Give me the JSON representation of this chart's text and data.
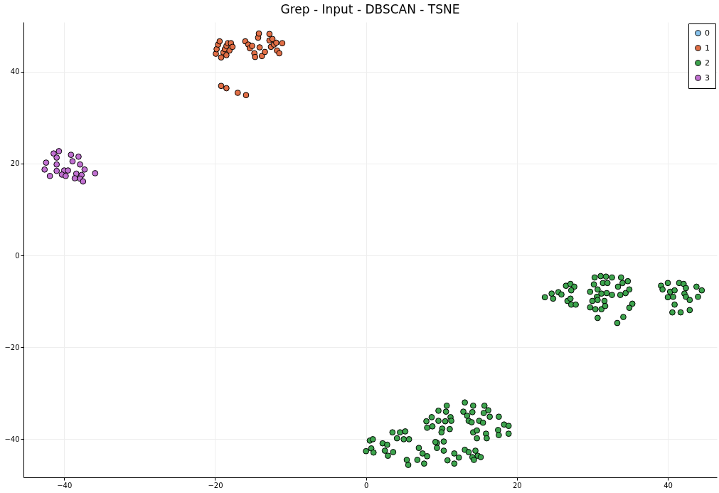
{
  "chart_data": {
    "type": "scatter",
    "title": "Grep - Input - DBSCAN - TSNE",
    "xlim": [
      -45.4,
      46.5
    ],
    "ylim": [
      -48.3,
      50.8
    ],
    "xticks": [
      -40,
      -20,
      0,
      20,
      40
    ],
    "yticks": [
      -40,
      -20,
      0,
      20,
      40
    ],
    "grid": true,
    "legend": "top right",
    "marker": "circle",
    "series": [
      {
        "name": "0",
        "color": "#88c4ee"
      },
      {
        "name": "1",
        "color": "#e26f46",
        "x": [
          -19.9,
          -19.8,
          -19.6,
          -19.4,
          -19.2,
          -18.9,
          -18.7,
          -18.5,
          -18.5,
          -18.3,
          -18.1,
          -17.9,
          -17.7,
          -16.0,
          -15.6,
          -15.4,
          -15.1,
          -14.8,
          -14.7,
          -14.3,
          -14.2,
          -14.1,
          -13.8,
          -13.4,
          -12.8,
          -12.8,
          -12.6,
          -12.4,
          -12.2,
          -11.9,
          -11.8,
          -11.5,
          -11.1,
          -19.2,
          -18.5,
          -17.0,
          -15.9
        ],
        "values": [
          43.9,
          44.9,
          45.9,
          46.6,
          43.1,
          44.2,
          44.9,
          45.6,
          43.6,
          46.2,
          44.6,
          46.2,
          45.4,
          46.6,
          45.9,
          45.1,
          45.6,
          44.0,
          43.2,
          47.4,
          48.3,
          45.3,
          43.4,
          44.3,
          48.2,
          46.8,
          45.4,
          47.1,
          45.9,
          46.3,
          44.6,
          44.0,
          46.2,
          36.9,
          36.4,
          35.4,
          34.9
        ]
      },
      {
        "name": "2",
        "color": "#3da44d",
        "x": [
          23.7,
          24.6,
          24.8,
          25.5,
          25.9,
          26.5,
          27.1,
          27.6,
          27.2,
          26.7,
          27.2,
          27.8,
          27.1,
          29.7,
          30.3,
          31.1,
          31.8,
          32.6,
          30.2,
          30.7,
          31.4,
          32.0,
          30.6,
          31.2,
          31.9,
          30.0,
          30.7,
          31.6,
          29.7,
          30.4,
          31.2,
          31.7,
          32.6,
          33.8,
          33.4,
          34.0,
          34.7,
          33.7,
          34.4,
          34.9,
          35.3,
          34.9,
          34.1,
          33.3,
          30.7,
          39.1,
          39.3,
          40.0,
          40.3,
          40.9,
          41.5,
          42.1,
          42.4,
          42.2,
          40.0,
          40.7,
          42.4,
          42.9,
          40.9,
          40.6,
          41.7,
          42.9,
          43.8,
          44.5,
          44.0,
          0.5,
          0.9,
          0.7,
          0.0,
          1.0,
          2.2,
          2.8,
          2.5,
          2.9,
          3.6,
          3.5,
          4.5,
          5.2,
          4.1,
          5.0,
          5.7,
          5.4,
          5.6,
          7.0,
          7.5,
          8.1,
          6.8,
          7.7,
          8.0,
          8.7,
          8.8,
          8.1,
          9.4,
          9.4,
          9.6,
          10.7,
          10.6,
          11.2,
          11.3,
          9.6,
          10.5,
          10.1,
          11.1,
          10.0,
          9.2,
          10.3,
          10.3,
          10.8,
          11.7,
          12.3,
          11.7,
          13.1,
          14.2,
          12.9,
          14.1,
          13.4,
          13.6,
          14.0,
          15.7,
          16.2,
          15.6,
          16.4,
          15.0,
          15.5,
          14.2,
          14.7,
          14.7,
          15.9,
          16.0,
          17.6,
          18.3,
          18.9,
          17.5,
          17.6,
          18.9,
          13.1,
          13.6,
          14.5,
          14.8,
          14.1,
          14.3,
          15.2
        ],
        "values": [
          -9.1,
          -8.3,
          -9.4,
          -8.0,
          -8.5,
          -6.6,
          -6.2,
          -6.8,
          -7.6,
          -9.9,
          -10.7,
          -10.7,
          -9.4,
          -7.9,
          -4.8,
          -4.5,
          -4.6,
          -4.8,
          -6.3,
          -7.4,
          -6.0,
          -6.0,
          -9.0,
          -8.3,
          -8.2,
          -9.9,
          -9.7,
          -9.9,
          -11.3,
          -11.7,
          -11.7,
          -11.0,
          -8.6,
          -4.8,
          -6.8,
          -6.0,
          -5.6,
          -8.6,
          -8.2,
          -7.4,
          -10.5,
          -11.4,
          -13.4,
          -14.7,
          -13.6,
          -6.6,
          -7.4,
          -6.0,
          -7.9,
          -7.6,
          -6.0,
          -6.2,
          -7.1,
          -8.3,
          -9.1,
          -9.0,
          -9.0,
          -9.7,
          -10.7,
          -12.4,
          -12.4,
          -11.9,
          -6.8,
          -7.6,
          -9.0,
          -40.3,
          -40.0,
          -42.0,
          -42.6,
          -42.9,
          -40.9,
          -41.2,
          -42.5,
          -43.6,
          -42.8,
          -38.5,
          -38.5,
          -38.3,
          -39.8,
          -40.0,
          -40.0,
          -44.5,
          -45.6,
          -41.9,
          -43.1,
          -43.7,
          -44.5,
          -45.3,
          -36.1,
          -35.2,
          -37.2,
          -37.5,
          -40.8,
          -41.9,
          -33.8,
          -32.7,
          -34.0,
          -35.2,
          -36.0,
          -36.0,
          -36.1,
          -37.7,
          -37.8,
          -38.5,
          -40.6,
          -40.5,
          -42.5,
          -44.6,
          -43.1,
          -44.0,
          -45.3,
          -32.0,
          -32.7,
          -34.0,
          -34.1,
          -34.9,
          -36.0,
          -36.3,
          -32.7,
          -33.7,
          -34.3,
          -35.1,
          -36.0,
          -36.4,
          -38.5,
          -38.1,
          -39.8,
          -38.8,
          -39.8,
          -35.1,
          -36.8,
          -37.1,
          -38.0,
          -39.1,
          -38.8,
          -42.3,
          -42.8,
          -42.5,
          -43.6,
          -43.9,
          -44.5,
          -43.9
        ]
      },
      {
        "name": "3",
        "color": "#c271d2",
        "x": [
          -41.4,
          -40.7,
          -41.0,
          -39.1,
          -38.1,
          -42.4,
          -41.0,
          -38.9,
          -37.9,
          -42.6,
          -41.0,
          -40.0,
          -39.5,
          -37.3,
          -41.9,
          -40.3,
          -39.8,
          -38.4,
          -37.7,
          -38.6,
          -37.9,
          -37.5,
          -35.9
        ],
        "values": [
          22.2,
          22.7,
          21.3,
          21.9,
          21.5,
          20.2,
          19.8,
          20.5,
          19.8,
          18.7,
          18.4,
          18.5,
          18.5,
          18.7,
          17.3,
          17.6,
          17.3,
          17.8,
          17.5,
          16.8,
          16.7,
          16.1,
          17.9
        ]
      }
    ]
  }
}
